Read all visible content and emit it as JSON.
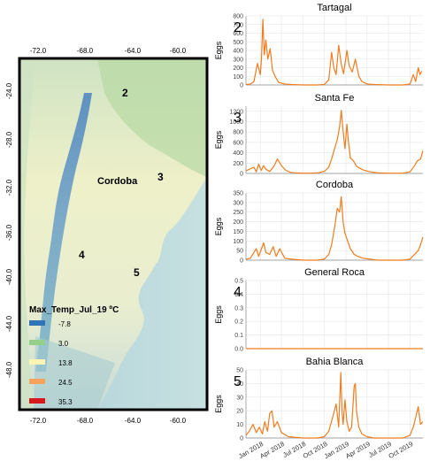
{
  "map": {
    "top_lon_ticks": [
      "-72.0",
      "-68.0",
      "-64.0",
      "-60.0"
    ],
    "bottom_lon_ticks": [
      "-72.0",
      "-68.0",
      "-64.0",
      "-60.0"
    ],
    "lat_ticks": [
      "-24.0",
      "-28.0",
      "-32.0",
      "-36.0",
      "-40.0",
      "-44.0",
      "-48.0"
    ],
    "site_labels": [
      "2",
      "3",
      "4",
      "5"
    ],
    "city_label": "Cordoba",
    "legend": {
      "title": "Max_Temp_Jul_19 ºC",
      "items": [
        {
          "color": "#2f74b5",
          "label": "-7.8"
        },
        {
          "color": "#96cf8a",
          "label": "3.0"
        },
        {
          "color": "#fdf5b3",
          "label": "13.8"
        },
        {
          "color": "#f5a35c",
          "label": "24.5"
        },
        {
          "color": "#d7191c",
          "label": "35.3"
        }
      ]
    }
  },
  "chart_data": [
    {
      "type": "line",
      "title": "Tartagal",
      "panel_label": "2",
      "ylabel": "Eggs",
      "ylim": [
        0,
        800
      ],
      "yticks": [
        0,
        100,
        200,
        300,
        400,
        500,
        600,
        700,
        800
      ],
      "color": "#f07c1e",
      "x": [
        "2017-11-01",
        "2017-11-20",
        "2017-12-05",
        "2017-12-20",
        "2018-01-01",
        "2018-01-06",
        "2018-01-12",
        "2018-01-18",
        "2018-01-25",
        "2018-02-02",
        "2018-02-12",
        "2018-02-22",
        "2018-03-05",
        "2018-03-20",
        "2018-04-15",
        "2018-05-15",
        "2018-07-01",
        "2018-09-01",
        "2018-10-01",
        "2018-10-20",
        "2018-11-01",
        "2018-11-10",
        "2018-11-20",
        "2018-12-01",
        "2018-12-12",
        "2018-12-22",
        "2019-01-05",
        "2019-01-15",
        "2019-01-28",
        "2019-02-10",
        "2019-02-25",
        "2019-03-10",
        "2019-04-01",
        "2019-05-01",
        "2019-07-01",
        "2019-09-01",
        "2019-10-01",
        "2019-10-15",
        "2019-10-25",
        "2019-11-05",
        "2019-11-12",
        "2019-11-20"
      ],
      "y": [
        5,
        10,
        40,
        250,
        120,
        300,
        760,
        350,
        520,
        300,
        420,
        170,
        100,
        30,
        10,
        5,
        0,
        0,
        5,
        60,
        380,
        200,
        120,
        460,
        240,
        130,
        400,
        220,
        150,
        300,
        100,
        40,
        10,
        5,
        0,
        0,
        10,
        120,
        40,
        200,
        120,
        160
      ]
    },
    {
      "type": "line",
      "title": "Santa Fe",
      "panel_label": "3",
      "ylabel": "Eggs",
      "ylim": [
        0,
        1300
      ],
      "yticks": [
        0,
        200,
        400,
        600,
        800,
        1000,
        1200
      ],
      "color": "#f07c1e",
      "x": [
        "2017-11-01",
        "2017-11-20",
        "2017-12-05",
        "2017-12-15",
        "2017-12-25",
        "2018-01-05",
        "2018-01-15",
        "2018-01-25",
        "2018-02-10",
        "2018-03-01",
        "2018-03-15",
        "2018-04-01",
        "2018-04-20",
        "2018-05-10",
        "2018-06-01",
        "2018-07-01",
        "2018-08-01",
        "2018-09-01",
        "2018-10-01",
        "2018-10-20",
        "2018-11-01",
        "2018-11-15",
        "2018-11-25",
        "2018-12-05",
        "2018-12-12",
        "2018-12-20",
        "2018-12-28",
        "2019-01-05",
        "2019-01-12",
        "2019-01-20",
        "2019-02-01",
        "2019-02-15",
        "2019-03-01",
        "2019-03-20",
        "2019-04-15",
        "2019-05-15",
        "2019-07-01",
        "2019-09-01",
        "2019-10-01",
        "2019-10-20",
        "2019-11-01",
        "2019-11-15",
        "2019-11-25"
      ],
      "y": [
        50,
        90,
        120,
        30,
        180,
        60,
        150,
        80,
        40,
        140,
        280,
        150,
        60,
        20,
        10,
        5,
        5,
        10,
        40,
        120,
        280,
        500,
        650,
        900,
        1220,
        820,
        480,
        950,
        600,
        300,
        250,
        140,
        100,
        60,
        30,
        10,
        5,
        5,
        30,
        150,
        240,
        280,
        440
      ]
    },
    {
      "type": "line",
      "title": "Cordoba",
      "panel_label": "",
      "ylabel": "Eggs",
      "ylim": [
        0,
        350
      ],
      "yticks": [
        0,
        50,
        100,
        150,
        200,
        250,
        300,
        350
      ],
      "color": "#f07c1e",
      "x": [
        "2017-11-01",
        "2017-11-20",
        "2017-12-05",
        "2017-12-15",
        "2017-12-25",
        "2018-01-05",
        "2018-01-15",
        "2018-01-25",
        "2018-02-10",
        "2018-02-25",
        "2018-03-10",
        "2018-03-25",
        "2018-04-15",
        "2018-05-15",
        "2018-07-01",
        "2018-09-01",
        "2018-10-01",
        "2018-10-20",
        "2018-11-01",
        "2018-11-15",
        "2018-11-25",
        "2018-12-05",
        "2018-12-12",
        "2018-12-20",
        "2018-12-28",
        "2019-01-08",
        "2019-01-20",
        "2019-02-05",
        "2019-02-20",
        "2019-03-15",
        "2019-04-15",
        "2019-05-15",
        "2019-07-01",
        "2019-09-01",
        "2019-10-01",
        "2019-10-20",
        "2019-11-05",
        "2019-11-15",
        "2019-11-25"
      ],
      "y": [
        5,
        10,
        40,
        60,
        20,
        55,
        90,
        40,
        30,
        70,
        20,
        60,
        10,
        5,
        0,
        0,
        5,
        30,
        80,
        180,
        270,
        250,
        330,
        200,
        140,
        100,
        60,
        30,
        20,
        10,
        5,
        0,
        0,
        0,
        5,
        30,
        50,
        80,
        120
      ]
    },
    {
      "type": "line",
      "title": "General Roca",
      "panel_label": "4",
      "ylabel": "Eggs",
      "ylim": [
        0,
        0.5
      ],
      "yticks": [
        0.0,
        0.1,
        0.2,
        0.3,
        0.4,
        0.5
      ],
      "color": "#f07c1e",
      "x": [
        "2017-11-01",
        "2019-11-25"
      ],
      "y": [
        0,
        0
      ]
    },
    {
      "type": "line",
      "title": "Bahia Blanca",
      "panel_label": "5",
      "ylabel": "Eggs",
      "ylim": [
        0,
        50
      ],
      "yticks": [
        0,
        10,
        20,
        30,
        40,
        50
      ],
      "color": "#f07c1e",
      "x": [
        "2017-11-01",
        "2017-11-15",
        "2017-12-01",
        "2017-12-15",
        "2017-12-28",
        "2018-01-10",
        "2018-01-20",
        "2018-02-01",
        "2018-02-10",
        "2018-02-20",
        "2018-03-01",
        "2018-03-15",
        "2018-04-01",
        "2018-05-01",
        "2018-07-01",
        "2018-09-01",
        "2018-10-01",
        "2018-10-20",
        "2018-11-05",
        "2018-11-20",
        "2018-12-01",
        "2018-12-10",
        "2018-12-15",
        "2018-12-20",
        "2018-12-28",
        "2019-01-05",
        "2019-01-15",
        "2019-01-25",
        "2019-02-05",
        "2019-02-10",
        "2019-02-15",
        "2019-02-25",
        "2019-03-10",
        "2019-04-01",
        "2019-05-01",
        "2019-07-01",
        "2019-09-01",
        "2019-10-01",
        "2019-10-15",
        "2019-10-25",
        "2019-11-05",
        "2019-11-15",
        "2019-11-25"
      ],
      "y": [
        2,
        5,
        10,
        4,
        8,
        3,
        12,
        5,
        18,
        20,
        8,
        12,
        4,
        1,
        0,
        0,
        1,
        5,
        15,
        25,
        8,
        48,
        20,
        10,
        28,
        12,
        5,
        8,
        38,
        40,
        20,
        8,
        3,
        1,
        0,
        0,
        0,
        2,
        8,
        15,
        23,
        10,
        12
      ]
    }
  ],
  "x_axis": {
    "ticks": [
      {
        "date": "2018-01-01",
        "label": "Jan 2018"
      },
      {
        "date": "2018-04-01",
        "label": "Apr 2018"
      },
      {
        "date": "2018-07-01",
        "label": "Jul 2018"
      },
      {
        "date": "2018-10-01",
        "label": "Oct 2018"
      },
      {
        "date": "2019-01-01",
        "label": "Jan 2019"
      },
      {
        "date": "2019-04-01",
        "label": "Apr 2019"
      },
      {
        "date": "2019-07-01",
        "label": "Jul 2019"
      },
      {
        "date": "2019-10-01",
        "label": "Oct 2019"
      }
    ]
  }
}
